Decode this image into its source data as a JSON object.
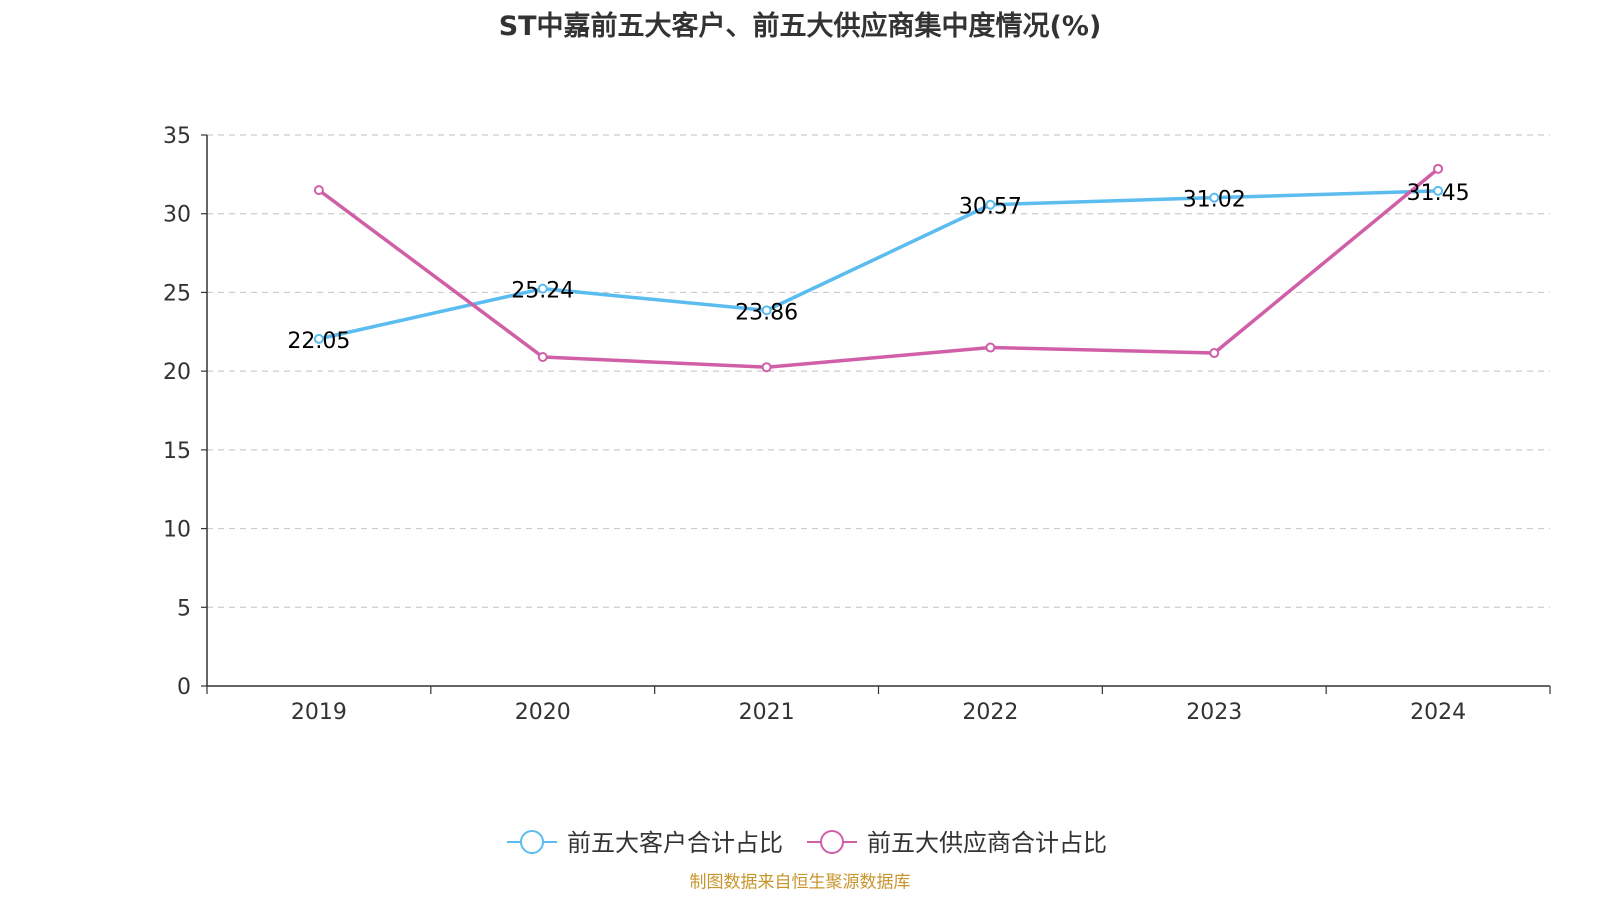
{
  "chart_data": {
    "type": "line",
    "title": "ST中嘉前五大客户、前五大供应商集中度情况(%)",
    "categories": [
      "2019",
      "2020",
      "2021",
      "2022",
      "2023",
      "2024"
    ],
    "ylim": [
      0,
      35
    ],
    "yticks": [
      0,
      5,
      10,
      15,
      20,
      25,
      30,
      35
    ],
    "grid": true,
    "legend_position": "bottom-center",
    "series": [
      {
        "name": "前五大客户合计占比",
        "color": "#5bbcf0",
        "values": [
          22.05,
          25.24,
          23.86,
          30.57,
          31.02,
          31.45
        ],
        "labels": [
          "22.05",
          "25.24",
          "23.86",
          "30.57",
          "31.02",
          "31.45"
        ]
      },
      {
        "name": "前五大供应商合计占比",
        "color": "#d05fa8",
        "values": [
          31.5,
          20.9,
          20.25,
          21.5,
          21.15,
          32.85
        ]
      }
    ]
  },
  "source_note": "制图数据来自恒生聚源数据库"
}
